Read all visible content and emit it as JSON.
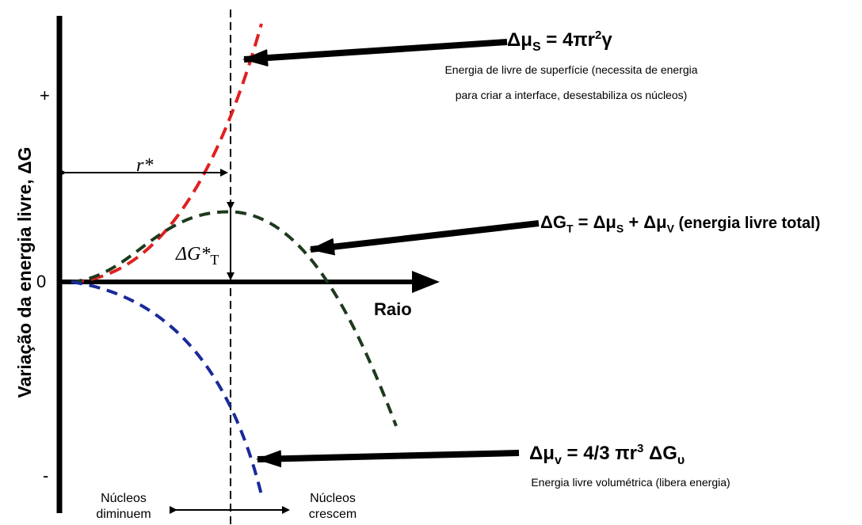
{
  "y_axis": {
    "label": "Variação da energia livre, ΔG",
    "tick_plus": "+",
    "tick_zero": "0",
    "tick_minus": "-"
  },
  "x_axis": {
    "label": "Raio"
  },
  "markers": {
    "r_star": "r*",
    "dg_star": "ΔG*",
    "dg_star_sub": "T"
  },
  "surface": {
    "eq_main": "Δμ",
    "eq_sub": "S",
    "eq_rest": " = 4πr",
    "eq_exp": "2",
    "eq_tail": "γ",
    "desc_line1": "Energia de livre de superfície (necessita de energia",
    "desc_line2": "para criar a interface, desestabiliza os núcleos)",
    "color": "#e02020"
  },
  "total": {
    "eq_a": "ΔG",
    "eq_a_sub": "T",
    "eq_b": " = Δμ",
    "eq_b_sub": "S",
    "eq_c": " + Δμ",
    "eq_c_sub": "V",
    "eq_tail": " (energia livre total)",
    "color": "#1e3a1e"
  },
  "volume": {
    "eq_main": "Δμ",
    "eq_sub": "v",
    "eq_rest": " = 4/3 πr",
    "eq_exp": "3",
    "eq_tail": " ΔG",
    "eq_tail_sub": "υ",
    "desc": "Energia livre volumétrica (libera energia)",
    "color": "#1a2a9a"
  },
  "regions": {
    "left_line1": "Núcleos",
    "left_line2": "diminuem",
    "right_line1": "Núcleos",
    "right_line2": "crescem"
  }
}
